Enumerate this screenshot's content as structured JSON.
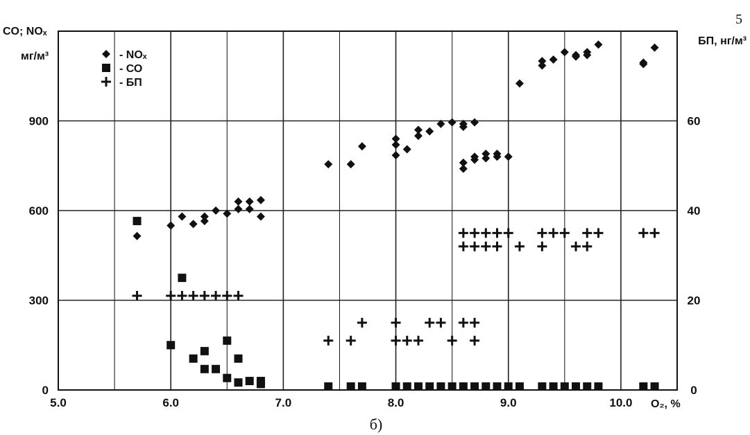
{
  "chart_data": {
    "type": "scatter",
    "x_label": "O₂, %",
    "y_left_label_line1": "CO; NOₓ",
    "y_left_label_line2": "мг/м³",
    "y_right_label": "БП, нг/м³",
    "corner_label": "5",
    "caption": "б)",
    "x_ticks": [
      "5.0",
      "6.0",
      "7.0",
      "8.0",
      "9.0",
      "10.0"
    ],
    "y_left_ticks": [
      "0",
      "300",
      "600",
      "900"
    ],
    "y_right_ticks": [
      "0",
      "20",
      "40",
      "60"
    ],
    "x_range": [
      5.0,
      10.5
    ],
    "y_left_range": [
      0,
      1200
    ],
    "y_right_range": [
      0,
      80
    ],
    "grid": true,
    "legend_position": "top-left",
    "series": [
      {
        "name": "- NOₓ",
        "marker": "diamond",
        "axis": "left",
        "points": [
          [
            5.7,
            515
          ],
          [
            6.0,
            550
          ],
          [
            6.1,
            580
          ],
          [
            6.2,
            555
          ],
          [
            6.3,
            565
          ],
          [
            6.3,
            580
          ],
          [
            6.4,
            600
          ],
          [
            6.5,
            590
          ],
          [
            6.6,
            605
          ],
          [
            6.6,
            630
          ],
          [
            6.7,
            630
          ],
          [
            6.7,
            605
          ],
          [
            6.8,
            635
          ],
          [
            6.8,
            580
          ],
          [
            7.4,
            755
          ],
          [
            7.6,
            755
          ],
          [
            7.7,
            815
          ],
          [
            8.0,
            785
          ],
          [
            8.0,
            820
          ],
          [
            8.0,
            840
          ],
          [
            8.1,
            805
          ],
          [
            8.2,
            850
          ],
          [
            8.2,
            870
          ],
          [
            8.3,
            865
          ],
          [
            8.4,
            890
          ],
          [
            8.5,
            895
          ],
          [
            8.6,
            880
          ],
          [
            8.6,
            890
          ],
          [
            8.7,
            895
          ],
          [
            8.6,
            740
          ],
          [
            8.6,
            760
          ],
          [
            8.7,
            770
          ],
          [
            8.7,
            780
          ],
          [
            8.8,
            775
          ],
          [
            8.8,
            790
          ],
          [
            8.9,
            780
          ],
          [
            8.9,
            790
          ],
          [
            9.0,
            780
          ],
          [
            9.1,
            1025
          ],
          [
            9.3,
            1085
          ],
          [
            9.3,
            1100
          ],
          [
            9.4,
            1105
          ],
          [
            9.5,
            1130
          ],
          [
            9.6,
            1115
          ],
          [
            9.6,
            1120
          ],
          [
            9.7,
            1120
          ],
          [
            9.7,
            1130
          ],
          [
            9.8,
            1155
          ],
          [
            10.2,
            1090
          ],
          [
            10.2,
            1095
          ],
          [
            10.3,
            1145
          ]
        ]
      },
      {
        "name": "- СО",
        "marker": "square",
        "axis": "left",
        "points": [
          [
            5.7,
            565
          ],
          [
            6.0,
            150
          ],
          [
            6.1,
            375
          ],
          [
            6.2,
            105
          ],
          [
            6.3,
            130
          ],
          [
            6.3,
            70
          ],
          [
            6.4,
            70
          ],
          [
            6.5,
            165
          ],
          [
            6.5,
            40
          ],
          [
            6.6,
            105
          ],
          [
            6.6,
            25
          ],
          [
            6.7,
            30
          ],
          [
            6.8,
            30
          ],
          [
            6.8,
            20
          ],
          [
            7.4,
            5
          ],
          [
            7.6,
            2
          ],
          [
            7.7,
            1
          ],
          [
            8.0,
            1
          ],
          [
            8.1,
            3
          ],
          [
            8.2,
            4
          ],
          [
            8.3,
            2
          ],
          [
            8.4,
            1
          ],
          [
            8.5,
            1
          ],
          [
            8.6,
            5
          ],
          [
            8.7,
            4
          ],
          [
            8.8,
            6
          ],
          [
            8.9,
            8
          ],
          [
            9.0,
            4
          ],
          [
            9.1,
            1
          ],
          [
            9.3,
            1
          ],
          [
            9.4,
            1
          ],
          [
            9.5,
            1
          ],
          [
            9.6,
            1
          ],
          [
            9.7,
            1
          ],
          [
            9.8,
            1
          ],
          [
            10.2,
            1
          ],
          [
            10.3,
            1
          ]
        ]
      },
      {
        "name": "- БП",
        "marker": "plus",
        "axis": "right",
        "points": [
          [
            5.7,
            21
          ],
          [
            6.0,
            21
          ],
          [
            6.1,
            21
          ],
          [
            6.2,
            21
          ],
          [
            6.3,
            21
          ],
          [
            6.4,
            21
          ],
          [
            6.5,
            21
          ],
          [
            6.6,
            21
          ],
          [
            7.4,
            11
          ],
          [
            7.6,
            11
          ],
          [
            7.7,
            15
          ],
          [
            8.0,
            15
          ],
          [
            8.0,
            11
          ],
          [
            8.1,
            11
          ],
          [
            8.2,
            11
          ],
          [
            8.3,
            15
          ],
          [
            8.4,
            15
          ],
          [
            8.5,
            11
          ],
          [
            8.6,
            15
          ],
          [
            8.7,
            15
          ],
          [
            8.7,
            11
          ],
          [
            8.6,
            35
          ],
          [
            8.7,
            35
          ],
          [
            8.8,
            35
          ],
          [
            8.9,
            35
          ],
          [
            9.0,
            35
          ],
          [
            8.6,
            32
          ],
          [
            8.7,
            32
          ],
          [
            8.8,
            32
          ],
          [
            8.9,
            32
          ],
          [
            9.1,
            32
          ],
          [
            9.3,
            35
          ],
          [
            9.4,
            35
          ],
          [
            9.5,
            35
          ],
          [
            9.3,
            32
          ],
          [
            9.6,
            32
          ],
          [
            9.7,
            32
          ],
          [
            9.7,
            35
          ],
          [
            9.8,
            35
          ],
          [
            10.2,
            35
          ],
          [
            10.3,
            35
          ]
        ]
      }
    ]
  }
}
